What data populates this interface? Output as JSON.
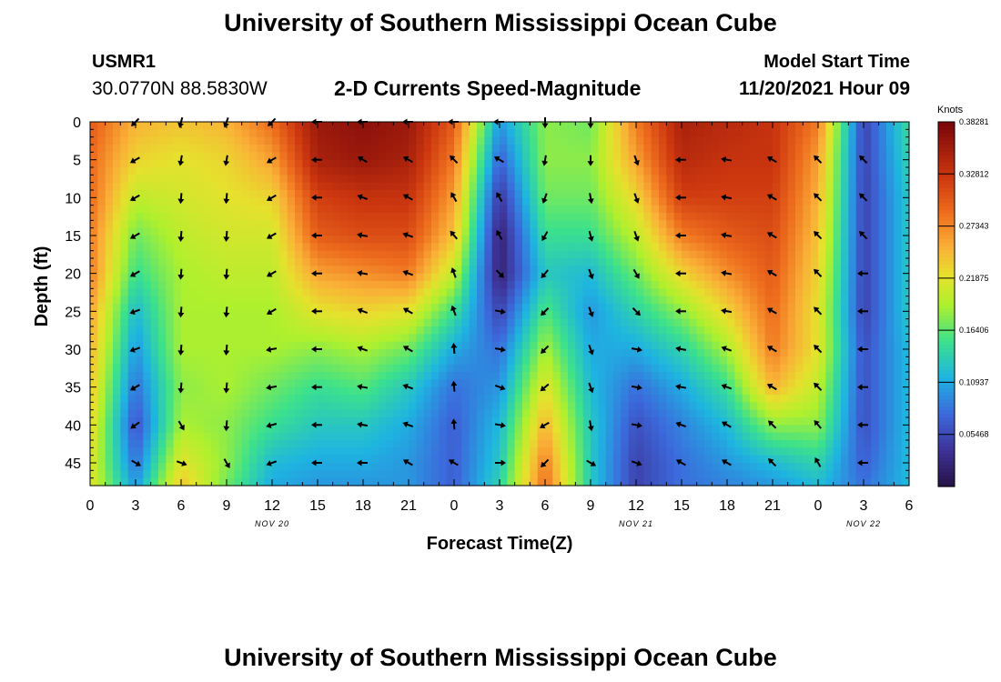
{
  "header": {
    "title": "University of Southern Mississippi Ocean Cube",
    "station_name": "USMR1",
    "station_coords": "30.0770N  88.5830W",
    "chart_title": "2-D Currents Speed-Magnitude",
    "start_label": "Model Start Time",
    "start_value": "11/20/2021 Hour 09"
  },
  "footer": {
    "title": "University of Southern Mississippi Ocean Cube"
  },
  "chart_data": {
    "type": "heatmap",
    "title": "2-D Currents Speed-Magnitude",
    "xlabel": "Forecast Time(Z)",
    "ylabel": "Depth (ft)",
    "x_hours": [
      0,
      54
    ],
    "x_tick_labels": [
      "0",
      "3",
      "6",
      "9",
      "12",
      "15",
      "18",
      "21",
      "0",
      "3",
      "6",
      "9",
      "12",
      "15",
      "18",
      "21",
      "0",
      "3",
      "6"
    ],
    "date_labels": [
      {
        "hour": 12,
        "text": "NOV 20"
      },
      {
        "hour": 36,
        "text": "NOV 21"
      },
      {
        "hour": 51,
        "text": "NOV 22"
      }
    ],
    "ylim": [
      0,
      48
    ],
    "y_tick_labels": [
      "0",
      "5",
      "10",
      "15",
      "20",
      "25",
      "30",
      "35",
      "40",
      "45"
    ],
    "colorbar": {
      "units": "Knots",
      "range": [
        0,
        0.3828
      ],
      "tick_labels": [
        "0.38281",
        "0.32812",
        "0.27343",
        "0.21875",
        "0.16406",
        "0.10937",
        "0.05468"
      ],
      "tick_values": [
        0.38281,
        0.32812,
        0.27343,
        0.21875,
        0.16406,
        0.10937,
        0.05468
      ]
    },
    "speed_grid": {
      "hours": [
        0,
        3,
        6,
        9,
        12,
        15,
        18,
        21,
        24,
        27,
        30,
        33,
        36,
        39,
        42,
        45,
        48,
        51,
        54
      ],
      "depths": [
        0,
        5,
        10,
        15,
        20,
        25,
        30,
        35,
        40,
        45,
        48
      ],
      "values": [
        [
          0.3,
          0.25,
          0.24,
          0.25,
          0.29,
          0.36,
          0.37,
          0.36,
          0.3,
          0.1,
          0.18,
          0.17,
          0.28,
          0.35,
          0.34,
          0.33,
          0.28,
          0.05,
          0.15
        ],
        [
          0.29,
          0.23,
          0.22,
          0.23,
          0.26,
          0.35,
          0.36,
          0.35,
          0.28,
          0.07,
          0.18,
          0.18,
          0.26,
          0.34,
          0.33,
          0.33,
          0.26,
          0.05,
          0.14
        ],
        [
          0.29,
          0.2,
          0.21,
          0.22,
          0.23,
          0.32,
          0.33,
          0.33,
          0.26,
          0.04,
          0.17,
          0.17,
          0.23,
          0.32,
          0.32,
          0.32,
          0.25,
          0.05,
          0.13
        ],
        [
          0.28,
          0.17,
          0.2,
          0.21,
          0.21,
          0.3,
          0.31,
          0.31,
          0.24,
          0.02,
          0.15,
          0.15,
          0.2,
          0.28,
          0.3,
          0.31,
          0.24,
          0.05,
          0.13
        ],
        [
          0.28,
          0.15,
          0.19,
          0.2,
          0.2,
          0.26,
          0.27,
          0.28,
          0.2,
          0.02,
          0.13,
          0.12,
          0.17,
          0.23,
          0.27,
          0.3,
          0.23,
          0.05,
          0.13
        ],
        [
          0.26,
          0.12,
          0.19,
          0.19,
          0.19,
          0.22,
          0.23,
          0.22,
          0.15,
          0.05,
          0.16,
          0.1,
          0.14,
          0.18,
          0.23,
          0.29,
          0.22,
          0.05,
          0.13
        ],
        [
          0.25,
          0.1,
          0.19,
          0.19,
          0.19,
          0.18,
          0.19,
          0.17,
          0.11,
          0.08,
          0.19,
          0.11,
          0.11,
          0.14,
          0.19,
          0.28,
          0.22,
          0.06,
          0.12
        ],
        [
          0.24,
          0.08,
          0.18,
          0.19,
          0.17,
          0.15,
          0.16,
          0.13,
          0.08,
          0.1,
          0.22,
          0.12,
          0.08,
          0.11,
          0.15,
          0.25,
          0.2,
          0.06,
          0.12
        ],
        [
          0.23,
          0.06,
          0.19,
          0.18,
          0.15,
          0.13,
          0.13,
          0.11,
          0.07,
          0.12,
          0.25,
          0.13,
          0.06,
          0.09,
          0.12,
          0.18,
          0.18,
          0.06,
          0.12
        ],
        [
          0.22,
          0.08,
          0.22,
          0.18,
          0.12,
          0.11,
          0.11,
          0.1,
          0.07,
          0.13,
          0.28,
          0.13,
          0.05,
          0.08,
          0.1,
          0.12,
          0.14,
          0.07,
          0.12
        ],
        [
          0.22,
          0.1,
          0.24,
          0.17,
          0.11,
          0.1,
          0.1,
          0.1,
          0.07,
          0.14,
          0.29,
          0.13,
          0.05,
          0.08,
          0.09,
          0.1,
          0.12,
          0.08,
          0.12
        ]
      ]
    },
    "vectors": {
      "hours": [
        0,
        3,
        6,
        9,
        12,
        15,
        18,
        21,
        24,
        27,
        30,
        33,
        36,
        39,
        42,
        45,
        48,
        51,
        54
      ],
      "depths": [
        0,
        5,
        10,
        15,
        20,
        25,
        30,
        35,
        40,
        45
      ],
      "direction_deg_from_up": [
        [
          null,
          225,
          195,
          200,
          225,
          270,
          270,
          270,
          270,
          270,
          180,
          180,
          null,
          null,
          null,
          null,
          null,
          null,
          null
        ],
        [
          null,
          240,
          190,
          190,
          240,
          270,
          300,
          300,
          315,
          300,
          190,
          180,
          160,
          270,
          280,
          300,
          315,
          315,
          null
        ],
        [
          null,
          240,
          185,
          185,
          240,
          270,
          290,
          300,
          330,
          330,
          200,
          170,
          160,
          270,
          280,
          300,
          315,
          315,
          null
        ],
        [
          null,
          240,
          185,
          185,
          240,
          270,
          280,
          290,
          320,
          330,
          210,
          165,
          160,
          270,
          280,
          300,
          315,
          315,
          null
        ],
        [
          null,
          240,
          185,
          185,
          240,
          270,
          280,
          290,
          340,
          135,
          220,
          160,
          150,
          270,
          280,
          300,
          315,
          270,
          null
        ],
        [
          null,
          250,
          185,
          185,
          240,
          270,
          290,
          300,
          340,
          100,
          225,
          160,
          135,
          270,
          280,
          300,
          315,
          270,
          null
        ],
        [
          null,
          250,
          185,
          185,
          260,
          270,
          290,
          300,
          355,
          100,
          225,
          160,
          100,
          280,
          290,
          300,
          315,
          270,
          null
        ],
        [
          null,
          240,
          185,
          185,
          260,
          270,
          280,
          290,
          355,
          110,
          230,
          160,
          100,
          280,
          290,
          300,
          315,
          270,
          null
        ],
        [
          null,
          235,
          150,
          185,
          255,
          270,
          280,
          290,
          355,
          100,
          240,
          170,
          100,
          290,
          300,
          315,
          320,
          270,
          null
        ],
        [
          null,
          120,
          110,
          150,
          250,
          270,
          270,
          300,
          300,
          90,
          225,
          120,
          110,
          300,
          300,
          315,
          330,
          270,
          null
        ]
      ]
    }
  }
}
